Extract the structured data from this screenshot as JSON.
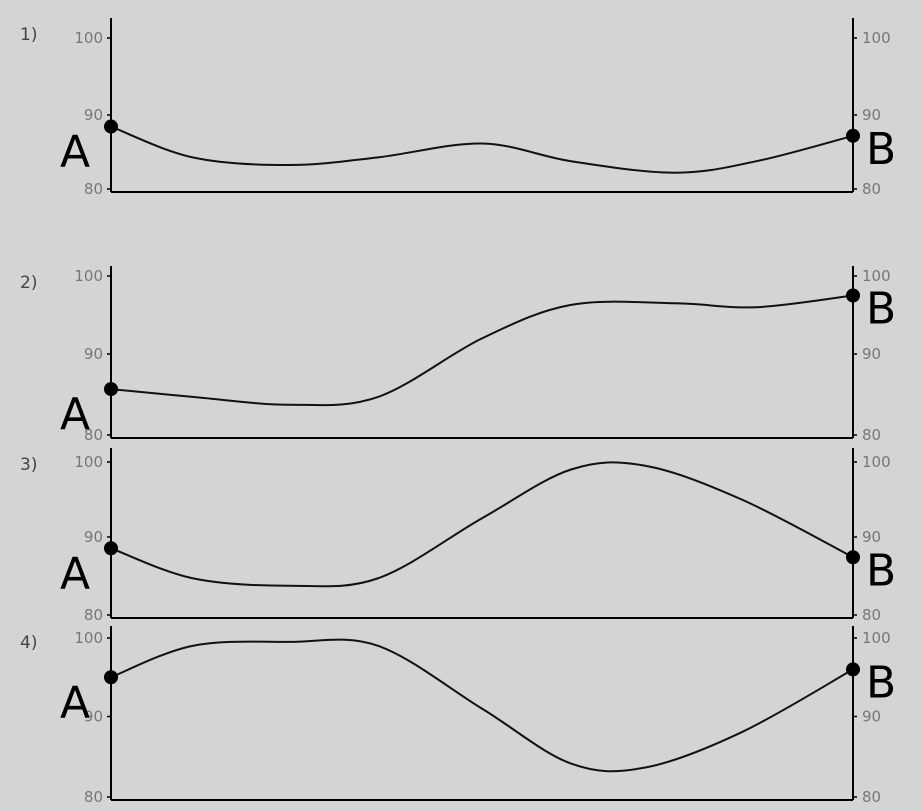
{
  "chart_data": [
    {
      "type": "line",
      "panel_label": "1)",
      "start_label": "A",
      "end_label": "B",
      "y_ticks_left": [
        "100",
        "90",
        "80"
      ],
      "y_ticks_right": [
        "100",
        "90",
        "80"
      ],
      "ylim": [
        80,
        100
      ],
      "x": [
        0,
        0.11,
        0.24,
        0.36,
        0.5,
        0.62,
        0.76,
        0.87,
        1
      ],
      "values": [
        88.5,
        84.5,
        83.5,
        84.5,
        86.3,
        84.0,
        82.5,
        84.0,
        87.3
      ]
    },
    {
      "type": "line",
      "panel_label": "2)",
      "start_label": "A",
      "end_label": "B",
      "y_ticks_left": [
        "100",
        "90",
        "80"
      ],
      "y_ticks_right": [
        "100",
        "90",
        "80"
      ],
      "ylim": [
        80,
        100
      ],
      "x": [
        0,
        0.11,
        0.24,
        0.36,
        0.5,
        0.62,
        0.76,
        0.87,
        1
      ],
      "values": [
        85.5,
        84.5,
        83.5,
        84.5,
        92.0,
        96.3,
        96.5,
        96.0,
        97.5
      ]
    },
    {
      "type": "line",
      "panel_label": "3)",
      "start_label": "A",
      "end_label": "B",
      "y_ticks_left": [
        "100",
        "90",
        "80"
      ],
      "y_ticks_right": [
        "100",
        "90",
        "80"
      ],
      "ylim": [
        80,
        100
      ],
      "x": [
        0,
        0.11,
        0.24,
        0.36,
        0.5,
        0.62,
        0.72,
        0.85,
        1
      ],
      "values": [
        88.5,
        84.5,
        83.5,
        84.5,
        92.5,
        99.0,
        99.5,
        95.0,
        87.3
      ]
    },
    {
      "type": "line",
      "panel_label": "4)",
      "start_label": "A",
      "end_label": "B",
      "y_ticks_left": [
        "100",
        "90",
        "80"
      ],
      "y_ticks_right": [
        "100",
        "90",
        "80"
      ],
      "ylim": [
        80,
        100
      ],
      "x": [
        0,
        0.11,
        0.24,
        0.36,
        0.5,
        0.62,
        0.72,
        0.85,
        1
      ],
      "values": [
        95.0,
        99.0,
        99.5,
        99.0,
        91.0,
        84.0,
        83.5,
        88.0,
        96.0
      ]
    }
  ]
}
